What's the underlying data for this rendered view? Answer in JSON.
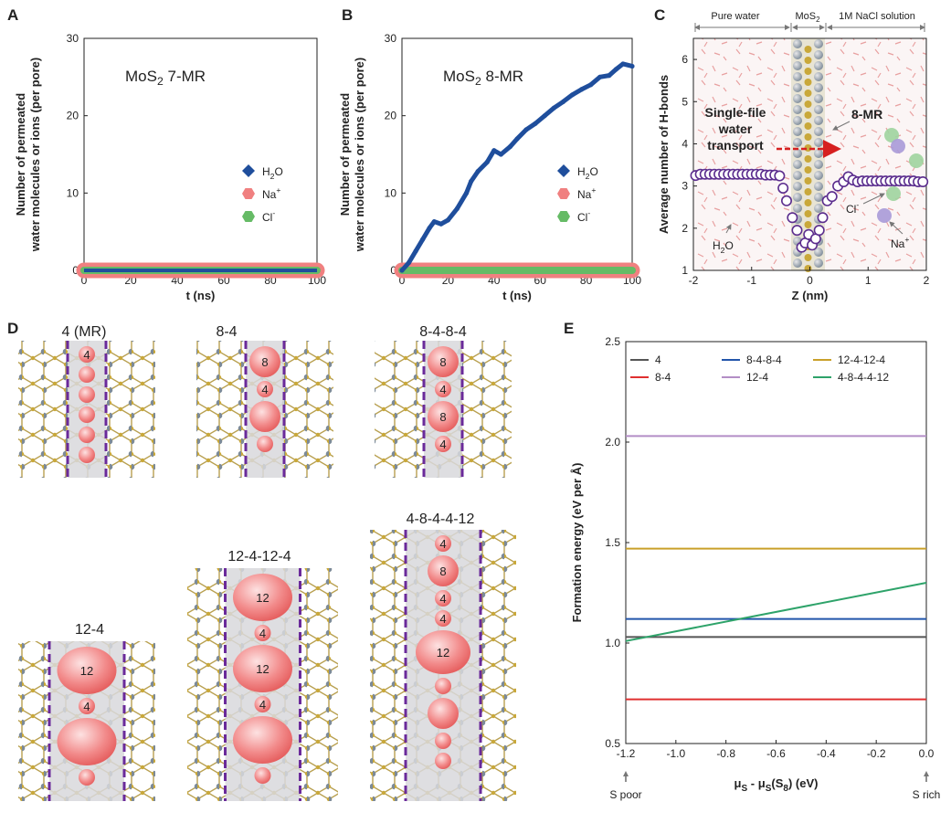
{
  "chart_data": [
    {
      "id": "A",
      "type": "line",
      "panel_label": "A",
      "annotation": {
        "main": "MoS",
        "sub": "2",
        "rest": " 7-MR"
      },
      "xlabel": "t (ns)",
      "ylabel_line1": "Number of permeated",
      "ylabel_line2": "water molecules or ions (per pore)",
      "xlim": [
        0,
        100
      ],
      "ylim": [
        0,
        30
      ],
      "xticks": [
        "0",
        "20",
        "40",
        "60",
        "80",
        "100"
      ],
      "yticks": [
        "0",
        "10",
        "20",
        "30"
      ],
      "legend": [
        {
          "main": "H",
          "sub": "2",
          "rest": "O",
          "color": "#1f4e9c",
          "marker": "diamond"
        },
        {
          "main": "Na",
          "sup": "+",
          "color": "#f08080",
          "marker": "hexagon"
        },
        {
          "main": "Cl",
          "sup": "-",
          "color": "#66bb66",
          "marker": "hexagon"
        }
      ],
      "series": [
        {
          "name": "H2O",
          "color": "#1f4e9c",
          "x": [
            0,
            100
          ],
          "y": [
            0,
            0
          ]
        },
        {
          "name": "Na+",
          "color": "#f08080",
          "x": [
            0,
            100
          ],
          "y": [
            0,
            0
          ]
        },
        {
          "name": "Cl-",
          "color": "#66bb66",
          "x": [
            0,
            100
          ],
          "y": [
            0,
            0
          ]
        }
      ]
    },
    {
      "id": "B",
      "type": "line",
      "panel_label": "B",
      "annotation": {
        "main": "MoS",
        "sub": "2",
        "rest": " 8-MR"
      },
      "xlabel": "t (ns)",
      "ylabel_line1": "Number of permeated",
      "ylabel_line2": "water molecules or ions (per pore)",
      "xlim": [
        0,
        100
      ],
      "ylim": [
        0,
        30
      ],
      "xticks": [
        "0",
        "20",
        "40",
        "60",
        "80",
        "100"
      ],
      "yticks": [
        "0",
        "10",
        "20",
        "30"
      ],
      "legend": [
        {
          "main": "H",
          "sub": "2",
          "rest": "O",
          "color": "#1f4e9c",
          "marker": "diamond"
        },
        {
          "main": "Na",
          "sup": "+",
          "color": "#f08080",
          "marker": "hexagon"
        },
        {
          "main": "Cl",
          "sup": "-",
          "color": "#66bb66",
          "marker": "hexagon"
        }
      ],
      "series": [
        {
          "name": "H2O",
          "color": "#1f4e9c",
          "x": [
            0,
            3,
            6,
            9,
            12,
            14,
            17,
            20,
            24,
            28,
            30,
            33,
            37,
            40,
            43,
            47,
            50,
            54,
            58,
            62,
            66,
            70,
            74,
            78,
            82,
            86,
            90,
            93,
            96,
            100
          ],
          "y": [
            0,
            1,
            2.5,
            4,
            5.5,
            6.3,
            6.0,
            6.5,
            8,
            10,
            11.5,
            12.8,
            14,
            15.5,
            15,
            16,
            17,
            18.2,
            19,
            20,
            21,
            21.8,
            22.7,
            23.4,
            24,
            25,
            25.2,
            26,
            26.7,
            26.4
          ]
        },
        {
          "name": "Na+",
          "color": "#f08080",
          "x": [
            0,
            100
          ],
          "y": [
            0,
            0
          ]
        },
        {
          "name": "Cl-",
          "color": "#66bb66",
          "x": [
            0,
            100
          ],
          "y": [
            0,
            0
          ]
        }
      ]
    },
    {
      "id": "C",
      "type": "scatter",
      "panel_label": "C",
      "region_labels": {
        "left": "Pure water",
        "mid_main": "MoS",
        "mid_sub": "2",
        "right": "1M NaCl solution"
      },
      "annotations": {
        "single_file": [
          "Single-file",
          "water",
          "transport"
        ],
        "mr": "8-MR",
        "h2o": {
          "main": "H",
          "sub": "2",
          "rest": "O"
        },
        "cl": {
          "main": "Cl",
          "sup": "-"
        },
        "na": {
          "main": "Na",
          "sup": "+"
        }
      },
      "xlabel": "Z (nm)",
      "ylabel": "Average number of H-bonds",
      "xlim": [
        -2,
        2
      ],
      "ylim": [
        1,
        6.5
      ],
      "xticks": [
        "-2",
        "-1",
        "0",
        "1",
        "2"
      ],
      "yticks": [
        "1",
        "2",
        "3",
        "4",
        "5",
        "6"
      ],
      "series": [
        {
          "name": "H-bonds",
          "color": "#5b2d8e",
          "x": [
            -1.96,
            -1.88,
            -1.8,
            -1.72,
            -1.64,
            -1.56,
            -1.48,
            -1.4,
            -1.32,
            -1.24,
            -1.16,
            -1.08,
            -1.0,
            -0.92,
            -0.84,
            -0.76,
            -0.68,
            -0.6,
            -0.52,
            -0.46,
            -0.4,
            -0.3,
            -0.22,
            -0.14,
            -0.08,
            -0.02,
            0.04,
            0.1,
            0.16,
            0.22,
            0.3,
            0.38,
            0.48,
            0.58,
            0.66,
            0.74,
            0.82,
            0.9,
            0.98,
            1.06,
            1.14,
            1.22,
            1.3,
            1.38,
            1.46,
            1.54,
            1.62,
            1.7,
            1.78,
            1.86,
            1.94
          ],
          "y": [
            3.25,
            3.28,
            3.28,
            3.28,
            3.28,
            3.28,
            3.28,
            3.28,
            3.28,
            3.28,
            3.28,
            3.28,
            3.28,
            3.28,
            3.28,
            3.26,
            3.26,
            3.26,
            3.24,
            2.95,
            2.65,
            2.25,
            1.95,
            1.55,
            1.65,
            1.85,
            1.6,
            1.75,
            1.95,
            2.25,
            2.65,
            2.75,
            3.0,
            3.1,
            3.22,
            3.14,
            3.1,
            3.12,
            3.12,
            3.12,
            3.12,
            3.12,
            3.12,
            3.12,
            3.12,
            3.12,
            3.12,
            3.12,
            3.12,
            3.1,
            3.1
          ]
        }
      ]
    },
    {
      "id": "E",
      "type": "line",
      "panel_label": "E",
      "xlabel": {
        "mu1": "μ",
        "s1": "S",
        "mid": " - μ",
        "s2": "S",
        "paren": "(S",
        "s3": "8",
        "end": ") (eV)"
      },
      "ylabel": "Formation energy (eV per Å)",
      "xlim": [
        -1.2,
        0.0
      ],
      "ylim": [
        0.5,
        2.5
      ],
      "xticks": [
        "-1.2",
        "-1.0",
        "-0.8",
        "-0.6",
        "-0.4",
        "-0.2",
        "0.0"
      ],
      "yticks": [
        "0.5",
        "1.0",
        "1.5",
        "2.0",
        "2.5"
      ],
      "arrow_labels": {
        "left": "S poor",
        "right": "S rich"
      },
      "series": [
        {
          "name": "4",
          "color": "#555555",
          "x": [
            -1.2,
            0.0
          ],
          "y": [
            1.03,
            1.03
          ]
        },
        {
          "name": "8-4",
          "color": "#e03030",
          "x": [
            -1.2,
            0.0
          ],
          "y": [
            0.72,
            0.72
          ]
        },
        {
          "name": "8-4-8-4",
          "color": "#2255aa",
          "x": [
            -1.2,
            0.0
          ],
          "y": [
            1.12,
            1.12
          ]
        },
        {
          "name": "12-4",
          "color": "#b38ec6",
          "x": [
            -1.2,
            0.0
          ],
          "y": [
            2.03,
            2.03
          ]
        },
        {
          "name": "12-4-12-4",
          "color": "#c9a02a",
          "x": [
            -1.2,
            0.0
          ],
          "y": [
            1.47,
            1.47
          ]
        },
        {
          "name": "4-8-4-4-12",
          "color": "#2ea36a",
          "x": [
            -1.2,
            0.0
          ],
          "y": [
            1.01,
            1.3
          ]
        }
      ]
    }
  ],
  "panel_D": {
    "label": "D",
    "structures": [
      {
        "title": "4 (MR)",
        "pores": [
          {
            "n": "4"
          }
        ]
      },
      {
        "title": "8-4",
        "pores": [
          {
            "n": "8"
          },
          {
            "n": "4"
          }
        ]
      },
      {
        "title": "8-4-8-4",
        "pores": [
          {
            "n": "8"
          },
          {
            "n": "4"
          },
          {
            "n": "8"
          },
          {
            "n": "4"
          }
        ]
      },
      {
        "title": "12-4",
        "pores": [
          {
            "n": "12"
          },
          {
            "n": "4"
          }
        ]
      },
      {
        "title": "12-4-12-4",
        "pores": [
          {
            "n": "12"
          },
          {
            "n": "4"
          },
          {
            "n": "12"
          },
          {
            "n": "4"
          }
        ]
      },
      {
        "title": "4-8-4-4-12",
        "pores": [
          {
            "n": "4"
          },
          {
            "n": "8"
          },
          {
            "n": "4"
          },
          {
            "n": "4"
          },
          {
            "n": "12"
          }
        ]
      }
    ]
  }
}
